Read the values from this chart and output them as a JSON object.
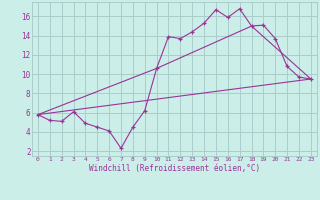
{
  "xlabel": "Windchill (Refroidissement éolien,°C)",
  "background_color": "#cceee8",
  "grid_color": "#aacccc",
  "line_color": "#993399",
  "xlim": [
    -0.5,
    23.5
  ],
  "ylim": [
    1.5,
    17.5
  ],
  "yticks": [
    2,
    4,
    6,
    8,
    10,
    12,
    14,
    16
  ],
  "xticks": [
    0,
    1,
    2,
    3,
    4,
    5,
    6,
    7,
    8,
    9,
    10,
    11,
    12,
    13,
    14,
    15,
    16,
    17,
    18,
    19,
    20,
    21,
    22,
    23
  ],
  "series1_x": [
    0,
    1,
    2,
    3,
    4,
    5,
    6,
    7,
    8,
    9,
    10,
    11,
    12,
    13,
    14,
    15,
    16,
    17,
    18,
    19,
    20,
    21,
    22,
    23
  ],
  "series1_y": [
    5.8,
    5.2,
    5.1,
    6.1,
    4.9,
    4.5,
    4.1,
    2.3,
    4.5,
    6.2,
    10.6,
    13.9,
    13.7,
    14.4,
    15.3,
    16.7,
    15.9,
    16.8,
    15.0,
    15.1,
    13.7,
    10.8,
    9.7,
    9.5
  ],
  "series2_x": [
    0,
    23
  ],
  "series2_y": [
    5.8,
    9.5
  ],
  "series3_x": [
    0,
    10,
    18,
    23
  ],
  "series3_y": [
    5.8,
    10.6,
    15.0,
    9.5
  ]
}
